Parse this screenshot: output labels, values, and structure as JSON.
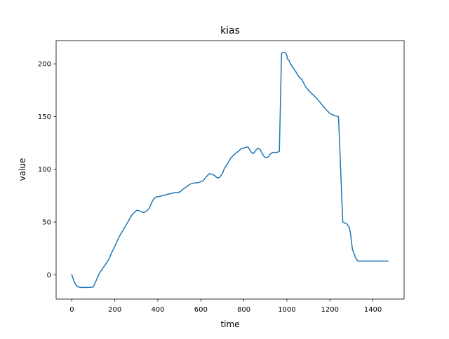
{
  "chart_data": {
    "type": "line",
    "title": "kias",
    "xlabel": "time",
    "ylabel": "value",
    "xlim": [
      -73,
      1545
    ],
    "ylim": [
      -23,
      222
    ],
    "xticks": [
      0,
      200,
      400,
      600,
      800,
      1000,
      1200,
      1400
    ],
    "yticks": [
      0,
      50,
      100,
      150,
      200
    ],
    "grid": false,
    "series": [
      {
        "color": "#1f77b4",
        "x": [
          0,
          10,
          20,
          30,
          45,
          60,
          80,
          100,
          110,
          120,
          130,
          150,
          170,
          190,
          200,
          220,
          240,
          260,
          280,
          300,
          310,
          320,
          335,
          345,
          360,
          375,
          385,
          395,
          405,
          420,
          440,
          460,
          480,
          495,
          505,
          515,
          530,
          550,
          570,
          590,
          610,
          625,
          640,
          655,
          665,
          675,
          685,
          700,
          710,
          720,
          740,
          760,
          780,
          790,
          800,
          810,
          820,
          835,
          845,
          855,
          865,
          875,
          885,
          895,
          905,
          915,
          925,
          935,
          945,
          955,
          965,
          975,
          985,
          995,
          1000,
          1002,
          1010,
          1020,
          1030,
          1040,
          1055,
          1070,
          1085,
          1100,
          1120,
          1140,
          1160,
          1180,
          1200,
          1220,
          1240,
          1260,
          1280,
          1290,
          1295,
          1300,
          1305,
          1320,
          1330,
          1345,
          1360,
          1375,
          1385,
          1400,
          1420,
          1440,
          1470
        ],
        "y": [
          0,
          -6,
          -10,
          -11.5,
          -12,
          -12,
          -12,
          -11.5,
          -7,
          -2,
          2,
          8,
          14,
          23,
          27,
          36,
          43,
          50,
          57,
          61,
          61,
          60,
          59,
          60,
          63,
          70,
          73,
          74,
          74,
          75,
          76,
          77,
          78,
          78,
          79,
          81,
          83,
          86,
          87,
          87.5,
          89,
          93,
          96,
          95,
          94,
          92,
          92,
          96,
          101,
          104,
          111,
          115,
          118,
          120,
          120,
          121,
          121,
          116,
          115,
          118,
          120,
          119,
          115,
          112,
          111,
          112,
          115,
          116,
          116,
          116,
          117,
          210,
          211,
          210,
          208,
          205,
          203,
          199,
          196,
          193,
          188,
          185,
          179,
          175,
          171,
          167,
          162,
          157,
          153,
          151,
          150,
          50,
          48,
          45,
          40,
          32,
          24,
          16,
          13,
          13,
          13,
          13,
          13,
          13,
          13,
          13,
          13
        ]
      }
    ]
  }
}
